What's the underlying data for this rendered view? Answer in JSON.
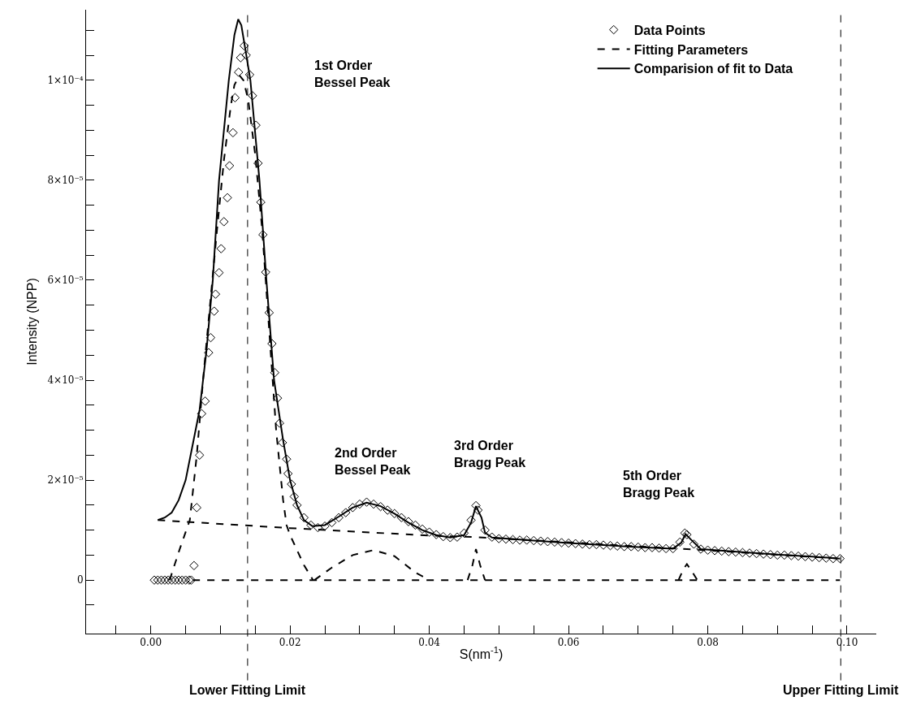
{
  "chart_data": {
    "type": "line",
    "xlabel": "S(nm$^{-1}$)",
    "ylabel": "Intensity (NPP)",
    "xlim": [
      -0.0093,
      0.1042
    ],
    "ylim": [
      -1.07e-05,
      0.0001141
    ],
    "xticks": [
      {
        "value": -0.005,
        "label": null
      },
      {
        "value": 0,
        "label": "0.00"
      },
      {
        "value": 0.005,
        "label": null
      },
      {
        "value": 0.01,
        "label": null
      },
      {
        "value": 0.015,
        "label": null
      },
      {
        "value": 0.02,
        "label": "0.02"
      },
      {
        "value": 0.025,
        "label": null
      },
      {
        "value": 0.03,
        "label": null
      },
      {
        "value": 0.035,
        "label": null
      },
      {
        "value": 0.04,
        "label": "0.04"
      },
      {
        "value": 0.045,
        "label": null
      },
      {
        "value": 0.05,
        "label": null
      },
      {
        "value": 0.055,
        "label": null
      },
      {
        "value": 0.06,
        "label": "0.06"
      },
      {
        "value": 0.065,
        "label": null
      },
      {
        "value": 0.07,
        "label": null
      },
      {
        "value": 0.075,
        "label": null
      },
      {
        "value": 0.08,
        "label": "0.08"
      },
      {
        "value": 0.085,
        "label": null
      },
      {
        "value": 0.09,
        "label": null
      },
      {
        "value": 0.095,
        "label": null
      },
      {
        "value": 0.1,
        "label": "0.10"
      }
    ],
    "yticks": [
      {
        "value": -5e-06,
        "label": null
      },
      0,
      {
        "value": 5e-06,
        "label": null
      },
      {
        "value": 1e-05,
        "label": null
      },
      {
        "value": 1.5e-05,
        "label": null
      },
      {
        "value": 2e-05,
        "label": "2×10⁻⁵"
      },
      {
        "value": 2.5e-05,
        "label": null
      },
      {
        "value": 3e-05,
        "label": null
      },
      {
        "value": 3.5e-05,
        "label": null
      },
      {
        "value": 4e-05,
        "label": "4×10⁻⁵"
      },
      {
        "value": 4.5e-05,
        "label": null
      },
      {
        "value": 5e-05,
        "label": null
      },
      {
        "value": 5.5e-05,
        "label": null
      },
      {
        "value": 6e-05,
        "label": "6×10⁻⁵"
      },
      {
        "value": 6.5e-05,
        "label": null
      },
      {
        "value": 7e-05,
        "label": null
      },
      {
        "value": 7.5e-05,
        "label": null
      },
      {
        "value": 8e-05,
        "label": "8×10⁻⁵"
      },
      {
        "value": 8.5e-05,
        "label": null
      },
      {
        "value": 9e-05,
        "label": null
      },
      {
        "value": 9.5e-05,
        "label": null
      },
      {
        "value": 0.0001,
        "label": "1×10⁻⁴"
      },
      {
        "value": 0.000105,
        "label": null
      },
      {
        "value": 0.00011,
        "label": null
      }
    ],
    "legend": "top right",
    "series": [
      {
        "name": "Data Points",
        "type": "scatter",
        "marker": "diamond",
        "color": "#000000",
        "x": [
          0.0005,
          0.001,
          0.0015,
          0.002,
          0.0025,
          0.003,
          0.0035,
          0.004,
          0.0045,
          0.005,
          0.0055,
          0.0058,
          0.0062,
          0.0066,
          0.007,
          0.0073,
          0.0078,
          0.0083,
          0.0086,
          0.0091,
          0.0093,
          0.0098,
          0.0101,
          0.0105,
          0.011,
          0.0113,
          0.0118,
          0.0121,
          0.0126,
          0.0129,
          0.0134,
          0.0137,
          0.0142,
          0.0146,
          0.0151,
          0.0154,
          0.0158,
          0.0161,
          0.0165,
          0.017,
          0.0174,
          0.0178,
          0.0182,
          0.0185,
          0.0189,
          0.0195,
          0.0197,
          0.0202,
          0.0206,
          0.021,
          0.022,
          0.023,
          0.024,
          0.025,
          0.026,
          0.027,
          0.028,
          0.029,
          0.03,
          0.031,
          0.032,
          0.033,
          0.034,
          0.035,
          0.036,
          0.037,
          0.038,
          0.039,
          0.04,
          0.041,
          0.042,
          0.043,
          0.044,
          0.045,
          0.046,
          0.0467,
          0.047,
          0.048,
          0.049,
          0.05,
          0.051,
          0.052,
          0.053,
          0.054,
          0.055,
          0.056,
          0.057,
          0.058,
          0.059,
          0.06,
          0.061,
          0.062,
          0.063,
          0.064,
          0.065,
          0.066,
          0.067,
          0.068,
          0.069,
          0.07,
          0.071,
          0.072,
          0.073,
          0.074,
          0.075,
          0.076,
          0.0767,
          0.077,
          0.078,
          0.079,
          0.08,
          0.081,
          0.082,
          0.083,
          0.084,
          0.085,
          0.086,
          0.087,
          0.088,
          0.089,
          0.09,
          0.091,
          0.092,
          0.093,
          0.094,
          0.095,
          0.096,
          0.097,
          0.098,
          0.099
        ],
        "values": [
          0,
          0,
          0,
          0,
          0,
          0,
          0,
          0,
          0,
          0,
          0,
          0,
          2.9e-06,
          1.45e-05,
          2.5e-05,
          3.33e-05,
          3.58e-05,
          4.55e-05,
          4.85e-05,
          5.38e-05,
          5.72e-05,
          6.15e-05,
          6.63e-05,
          7.17e-05,
          7.65e-05,
          8.29e-05,
          8.95e-05,
          9.65e-05,
          0.0001016,
          0.0001045,
          0.0001069,
          0.000105,
          0.0001011,
          9.69e-05,
          9.1e-05,
          8.34e-05,
          7.56e-05,
          6.91e-05,
          6.16e-05,
          5.35e-05,
          4.73e-05,
          4.15e-05,
          3.64e-05,
          3.14e-05,
          2.75e-05,
          2.42e-05,
          2.13e-05,
          1.92e-05,
          1.67e-05,
          1.5e-05,
          1.25e-05,
          1.1e-05,
          1.05e-05,
          1.08e-05,
          1.15e-05,
          1.25e-05,
          1.35e-05,
          1.45e-05,
          1.52e-05,
          1.56e-05,
          1.52e-05,
          1.47e-05,
          1.4e-05,
          1.33e-05,
          1.25e-05,
          1.17e-05,
          1.1e-05,
          1.02e-05,
          9.6e-06,
          9.1e-06,
          8.7e-06,
          8.5e-06,
          8.6e-06,
          9.4e-06,
          1.2e-05,
          1.49e-05,
          1.4e-05,
          1e-05,
          8.6e-06,
          8.3e-06,
          8.2e-06,
          8.1e-06,
          8e-06,
          8e-06,
          7.9e-06,
          7.8e-06,
          7.7e-06,
          7.6e-06,
          7.5e-06,
          7.4e-06,
          7.3e-06,
          7.2e-06,
          7.1e-06,
          7.1e-06,
          7e-06,
          6.9e-06,
          6.8e-06,
          6.7e-06,
          6.7e-06,
          6.6e-06,
          6.5e-06,
          6.5e-06,
          6.4e-06,
          6.3e-06,
          6.3e-06,
          7.6e-06,
          9.4e-06,
          9.1e-06,
          7.2e-06,
          6.2e-06,
          6e-06,
          5.9e-06,
          5.8e-06,
          5.7e-06,
          5.6e-06,
          5.5e-06,
          5.4e-06,
          5.3e-06,
          5.2e-06,
          5.1e-06,
          5e-06,
          5e-06,
          4.9e-06,
          4.8e-06,
          4.7e-06,
          4.6e-06,
          4.5e-06,
          4.4e-06,
          4.3e-06,
          4.3e-06
        ]
      },
      {
        "name": "Fitting Parameters",
        "line_style": "dashed",
        "marker": "none",
        "color": "#000000",
        "x": [
          0.0027,
          0.0041,
          0.0056,
          0.0066,
          0.0075,
          0.0085,
          0.0095,
          0.0105,
          0.0115,
          0.012,
          0.0127,
          0.0133,
          0.014,
          0.015,
          0.016,
          0.017,
          0.018,
          0.019,
          0.0195,
          0.02,
          0.021,
          0.022,
          0.0233
        ],
        "values": [
          0,
          6e-06,
          1.2e-05,
          2.5e-05,
          4e-05,
          5.5e-05,
          7e-05,
          8.4e-05,
          9.5e-05,
          9.9e-05,
          0.000101,
          0.0001,
          9.6e-05,
          8.5e-05,
          7e-05,
          5e-05,
          3e-05,
          1.6e-05,
          1.1e-05,
          9e-06,
          6e-06,
          3e-06,
          0
        ]
      },
      {
        "line_style": "dashed",
        "marker": "none",
        "color": "#000000",
        "x": [
          0.001,
          0.02,
          0.04,
          0.0467,
          0.077,
          0.099
        ],
        "values": [
          1.2e-05,
          1.04e-05,
          8.9e-06,
          8.6e-06,
          6.2e-06,
          4.3e-06
        ]
      },
      {
        "line_style": "dashed",
        "marker": "none",
        "color": "#000000",
        "x": [
          0.0235,
          0.026,
          0.029,
          0.032,
          0.035,
          0.038,
          0.04
        ],
        "values": [
          0,
          2.5e-06,
          5e-06,
          6e-06,
          4.8e-06,
          1.5e-06,
          0
        ]
      },
      {
        "line_style": "dashed",
        "marker": "none",
        "color": "#000000",
        "x": [
          0.0455,
          0.0462,
          0.0467,
          0.0473,
          0.048
        ],
        "values": [
          0,
          3e-06,
          6.2e-06,
          3e-06,
          0
        ]
      },
      {
        "line_style": "dashed",
        "marker": "none",
        "color": "#000000",
        "x": [
          0.0758,
          0.0765,
          0.077,
          0.0776,
          0.0785
        ],
        "values": [
          0,
          2.2e-06,
          3.2e-06,
          2e-06,
          0
        ]
      },
      {
        "line_style": "dashed",
        "marker": "none",
        "color": "#000000",
        "x": [
          0.006,
          0.099
        ],
        "values": [
          0,
          0
        ]
      },
      {
        "name": "Comparision of fit to Data",
        "line_style": "solid",
        "marker": "none",
        "color": "#000000",
        "x": [
          0.001,
          0.002,
          0.003,
          0.004,
          0.005,
          0.006,
          0.007,
          0.0075,
          0.008,
          0.0089,
          0.0098,
          0.0112,
          0.012,
          0.01255,
          0.013,
          0.0136,
          0.0143,
          0.0156,
          0.0166,
          0.0177,
          0.019,
          0.02,
          0.021,
          0.022,
          0.0232,
          0.025,
          0.027,
          0.029,
          0.031,
          0.033,
          0.035,
          0.037,
          0.039,
          0.041,
          0.043,
          0.045,
          0.046,
          0.0467,
          0.0475,
          0.048,
          0.049,
          0.055,
          0.06,
          0.065,
          0.07,
          0.075,
          0.0762,
          0.0768,
          0.0778,
          0.079,
          0.085,
          0.09,
          0.095,
          0.099
        ],
        "values": [
          1.2e-05,
          1.25e-05,
          1.35e-05,
          1.6e-05,
          2e-05,
          2.7e-05,
          3.4e-05,
          4e-05,
          4.6e-05,
          6e-05,
          8e-05,
          0.0001,
          0.000109,
          0.0001122,
          0.000111,
          0.000106,
          0.0001,
          8e-05,
          6e-05,
          4e-05,
          2.8e-05,
          2e-05,
          1.5e-05,
          1.2e-05,
          1.08e-05,
          1.1e-05,
          1.27e-05,
          1.45e-05,
          1.55e-05,
          1.48e-05,
          1.33e-05,
          1.15e-05,
          1e-05,
          9e-06,
          8.5e-06,
          9e-06,
          1.15e-05,
          1.48e-05,
          1.25e-05,
          9.5e-06,
          8.5e-06,
          7.9e-06,
          7.4e-06,
          7e-06,
          6.6e-06,
          6.3e-06,
          7.5e-06,
          9.2e-06,
          7.8e-06,
          6.2e-06,
          5.6e-06,
          5.1e-06,
          4.7e-06,
          4.3e-06
        ]
      }
    ],
    "ref_lines": [
      {
        "axis": "x",
        "value": 0.0139,
        "label": "Lower Fitting Limit",
        "line_style": "dashed",
        "color": "#000000"
      },
      {
        "axis": "x",
        "value": 0.0991,
        "label": "Upper Fitting Limit",
        "line_style": "dashed",
        "color": "#000000"
      }
    ],
    "annotations": [
      "1st Order\nBessel Peak",
      "2nd Order\nBessel Peak",
      "3rd Order\nBragg Peak",
      "5th Order\nBragg Peak"
    ]
  }
}
